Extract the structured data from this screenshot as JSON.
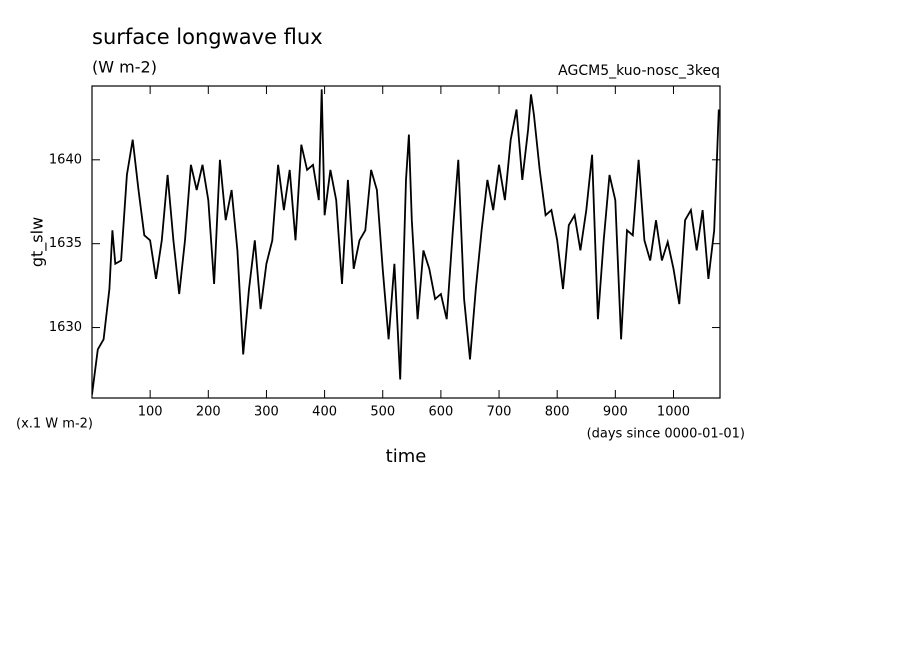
{
  "chart_data": {
    "type": "line",
    "title": "surface longwave flux",
    "subtitle": "(W m-2)",
    "annotation": "AGCM5_kuo-nosc_3keq",
    "ylabel": "gt_slw",
    "yunits": "(x.1 W m-2)",
    "xlabel": "time",
    "xunits": "(days since 0000-01-01)",
    "xlim": [
      0,
      1080
    ],
    "ylim": [
      1625.8,
      1644.4
    ],
    "xticks": [
      100,
      200,
      300,
      400,
      500,
      600,
      700,
      800,
      900,
      1000
    ],
    "yticks": [
      1630,
      1635,
      1640
    ],
    "color": "#000000",
    "x": [
      0,
      10,
      20,
      30,
      35,
      40,
      50,
      60,
      70,
      80,
      90,
      100,
      110,
      120,
      130,
      140,
      150,
      160,
      170,
      180,
      190,
      200,
      210,
      220,
      230,
      240,
      250,
      260,
      270,
      280,
      290,
      300,
      310,
      320,
      330,
      340,
      350,
      360,
      370,
      380,
      390,
      395,
      400,
      410,
      420,
      430,
      440,
      450,
      460,
      470,
      480,
      490,
      500,
      510,
      520,
      530,
      540,
      545,
      550,
      560,
      570,
      580,
      590,
      600,
      610,
      620,
      630,
      640,
      650,
      660,
      670,
      680,
      690,
      700,
      710,
      720,
      730,
      740,
      750,
      755,
      760,
      770,
      780,
      790,
      800,
      810,
      820,
      830,
      840,
      850,
      860,
      870,
      880,
      890,
      900,
      910,
      920,
      930,
      940,
      950,
      960,
      970,
      980,
      990,
      1000,
      1010,
      1020,
      1030,
      1040,
      1050,
      1060,
      1070,
      1078
    ],
    "values": [
      1626.0,
      1628.7,
      1629.3,
      1632.3,
      1635.8,
      1633.8,
      1634.0,
      1639.1,
      1641.2,
      1638.2,
      1635.5,
      1635.2,
      1632.9,
      1635.2,
      1639.1,
      1635.2,
      1632.0,
      1635.2,
      1639.7,
      1638.2,
      1639.7,
      1637.6,
      1632.6,
      1640.0,
      1636.4,
      1638.2,
      1634.6,
      1628.4,
      1632.3,
      1635.2,
      1631.1,
      1633.8,
      1635.2,
      1639.7,
      1637.0,
      1639.4,
      1635.2,
      1640.9,
      1639.4,
      1639.7,
      1637.6,
      1644.2,
      1636.7,
      1639.4,
      1637.6,
      1632.6,
      1638.8,
      1633.5,
      1635.2,
      1635.8,
      1639.4,
      1638.2,
      1633.5,
      1629.3,
      1633.8,
      1626.9,
      1638.8,
      1641.5,
      1636.4,
      1630.5,
      1634.6,
      1633.5,
      1631.7,
      1632.0,
      1630.5,
      1635.5,
      1640.0,
      1631.7,
      1628.1,
      1632.3,
      1635.8,
      1638.8,
      1637.0,
      1639.7,
      1637.6,
      1641.2,
      1643.0,
      1638.8,
      1641.8,
      1643.9,
      1642.7,
      1639.4,
      1636.7,
      1637.0,
      1635.2,
      1632.3,
      1636.1,
      1636.7,
      1634.6,
      1637.0,
      1640.3,
      1630.5,
      1635.2,
      1639.1,
      1637.6,
      1629.3,
      1635.8,
      1635.5,
      1640.0,
      1635.2,
      1634.0,
      1636.4,
      1634.0,
      1635.1,
      1633.5,
      1631.4,
      1636.4,
      1637.0,
      1634.6,
      1637.0,
      1632.9,
      1635.8,
      1643.0
    ]
  }
}
